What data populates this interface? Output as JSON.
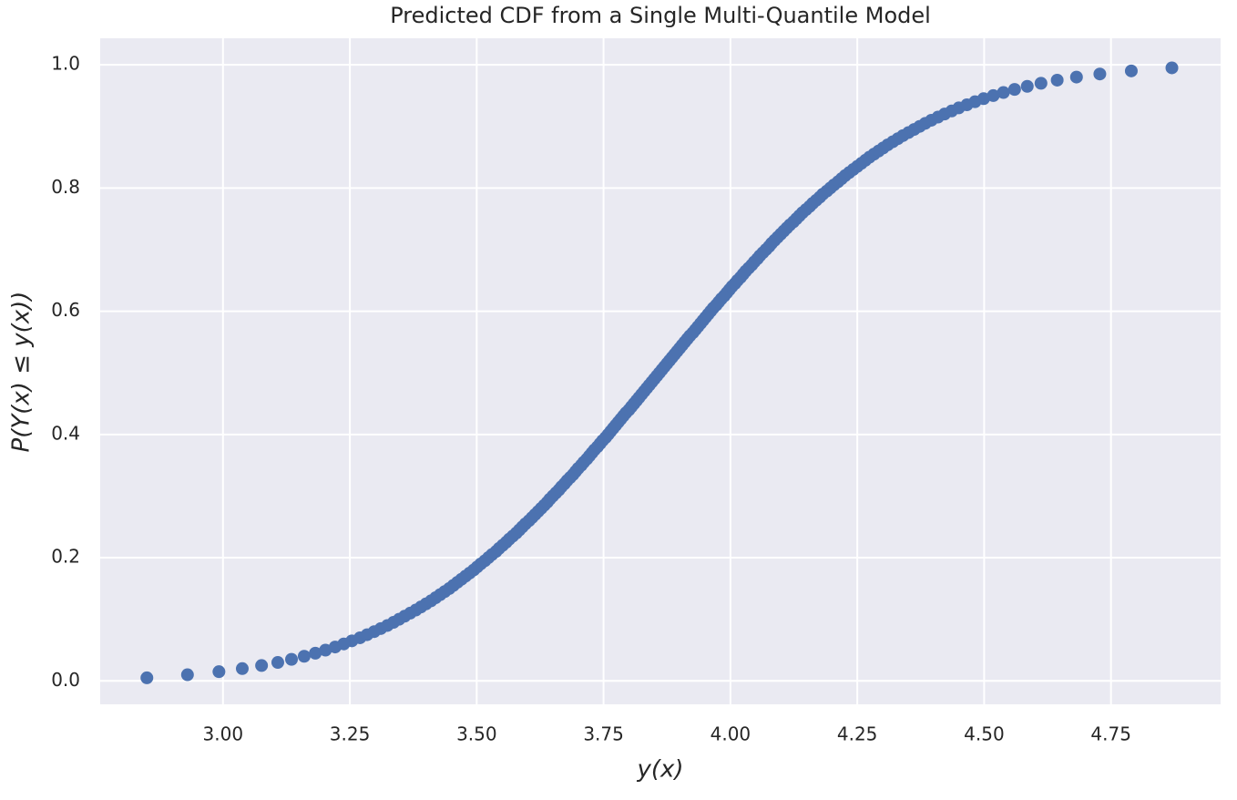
{
  "chart_data": {
    "type": "scatter",
    "title": "Predicted CDF from a Single Multi-Quantile Model",
    "x_label": "y(x)",
    "y_label": "P(Y(x) ≤ y(x))",
    "color": "#4c72b0",
    "grid": true,
    "xlim": [
      2.758,
      4.966
    ],
    "ylim": [
      -0.038,
      1.043
    ],
    "xticks": [
      {
        "value": 3.0,
        "label": "3.00"
      },
      {
        "value": 3.25,
        "label": "3.25"
      },
      {
        "value": 3.5,
        "label": "3.50"
      },
      {
        "value": 3.75,
        "label": "3.75"
      },
      {
        "value": 4.0,
        "label": "4.00"
      },
      {
        "value": 4.25,
        "label": "4.25"
      },
      {
        "value": 4.5,
        "label": "4.50"
      },
      {
        "value": 4.75,
        "label": "4.75"
      }
    ],
    "yticks": [
      {
        "value": 0,
        "label": "0.0"
      },
      0.2,
      0.4,
      0.6,
      0.8,
      {
        "value": 1,
        "label": "1.0"
      }
    ],
    "x": [
      2.85,
      2.93,
      2.992,
      3.038,
      3.076,
      3.108,
      3.135,
      3.16,
      3.182,
      3.202,
      3.221,
      3.238,
      3.254,
      3.27,
      3.284,
      3.298,
      3.311,
      3.324,
      3.336,
      3.347,
      3.358,
      3.369,
      3.38,
      3.39,
      3.4,
      3.41,
      3.419,
      3.428,
      3.437,
      3.446,
      3.454,
      3.462,
      3.47,
      3.478,
      3.486,
      3.494,
      3.501,
      3.508,
      3.516,
      3.523,
      3.53,
      3.538,
      3.544,
      3.551,
      3.558,
      3.564,
      3.571,
      3.578,
      3.584,
      3.59,
      3.596,
      3.603,
      3.609,
      3.615,
      3.621,
      3.627,
      3.633,
      3.639,
      3.644,
      3.65,
      3.656,
      3.662,
      3.667,
      3.673,
      3.678,
      3.684,
      3.69,
      3.695,
      3.7,
      3.706,
      3.711,
      3.717,
      3.722,
      3.727,
      3.732,
      3.738,
      3.743,
      3.748,
      3.754,
      3.759,
      3.764,
      3.769,
      3.774,
      3.779,
      3.784,
      3.789,
      3.794,
      3.8,
      3.805,
      3.81,
      3.815,
      3.82,
      3.825,
      3.83,
      3.835,
      3.84,
      3.845,
      3.85,
      3.855,
      3.86,
      3.865,
      3.87,
      3.875,
      3.88,
      3.885,
      3.89,
      3.895,
      3.9,
      3.905,
      3.91,
      3.915,
      3.92,
      3.926,
      3.931,
      3.936,
      3.941,
      3.946,
      3.951,
      3.956,
      3.961,
      3.966,
      3.972,
      3.977,
      3.982,
      3.988,
      3.993,
      3.998,
      4.003,
      4.009,
      4.014,
      4.02,
      4.025,
      4.03,
      4.036,
      4.042,
      4.047,
      4.053,
      4.058,
      4.064,
      4.07,
      4.076,
      4.081,
      4.087,
      4.093,
      4.099,
      4.105,
      4.111,
      4.117,
      4.124,
      4.13,
      4.136,
      4.142,
      4.149,
      4.156,
      4.162,
      4.169,
      4.176,
      4.182,
      4.19,
      4.197,
      4.204,
      4.212,
      4.219,
      4.226,
      4.234,
      4.242,
      4.25,
      4.258,
      4.266,
      4.274,
      4.283,
      4.292,
      4.301,
      4.31,
      4.32,
      4.33,
      4.34,
      4.351,
      4.362,
      4.373,
      4.384,
      4.396,
      4.409,
      4.422,
      4.436,
      4.45,
      4.466,
      4.482,
      4.499,
      4.518,
      4.538,
      4.56,
      4.585,
      4.612,
      4.644,
      4.682,
      4.728,
      4.79,
      4.87
    ],
    "values": [
      0.005,
      0.01,
      0.015,
      0.02,
      0.025,
      0.03,
      0.035,
      0.04,
      0.045,
      0.05,
      0.055,
      0.06,
      0.065,
      0.07,
      0.075,
      0.08,
      0.085,
      0.09,
      0.095,
      0.1,
      0.105,
      0.11,
      0.115,
      0.12,
      0.125,
      0.13,
      0.135,
      0.14,
      0.145,
      0.15,
      0.155,
      0.16,
      0.165,
      0.17,
      0.175,
      0.18,
      0.185,
      0.19,
      0.195,
      0.2,
      0.205,
      0.21,
      0.215,
      0.22,
      0.225,
      0.23,
      0.235,
      0.24,
      0.245,
      0.25,
      0.255,
      0.26,
      0.265,
      0.27,
      0.275,
      0.28,
      0.285,
      0.29,
      0.295,
      0.3,
      0.305,
      0.31,
      0.315,
      0.32,
      0.325,
      0.33,
      0.335,
      0.34,
      0.345,
      0.35,
      0.355,
      0.36,
      0.365,
      0.37,
      0.375,
      0.38,
      0.385,
      0.39,
      0.395,
      0.4,
      0.405,
      0.41,
      0.415,
      0.42,
      0.425,
      0.43,
      0.435,
      0.44,
      0.445,
      0.45,
      0.455,
      0.46,
      0.465,
      0.47,
      0.475,
      0.48,
      0.485,
      0.49,
      0.495,
      0.5,
      0.505,
      0.51,
      0.515,
      0.52,
      0.525,
      0.53,
      0.535,
      0.54,
      0.545,
      0.55,
      0.555,
      0.56,
      0.565,
      0.57,
      0.575,
      0.58,
      0.585,
      0.59,
      0.595,
      0.6,
      0.605,
      0.61,
      0.615,
      0.62,
      0.625,
      0.63,
      0.635,
      0.64,
      0.645,
      0.65,
      0.655,
      0.66,
      0.665,
      0.67,
      0.675,
      0.68,
      0.685,
      0.69,
      0.695,
      0.7,
      0.705,
      0.71,
      0.715,
      0.72,
      0.725,
      0.73,
      0.735,
      0.74,
      0.745,
      0.75,
      0.755,
      0.76,
      0.765,
      0.77,
      0.775,
      0.78,
      0.785,
      0.79,
      0.795,
      0.8,
      0.805,
      0.81,
      0.815,
      0.82,
      0.825,
      0.83,
      0.835,
      0.84,
      0.845,
      0.85,
      0.855,
      0.86,
      0.865,
      0.87,
      0.875,
      0.88,
      0.885,
      0.89,
      0.895,
      0.9,
      0.905,
      0.91,
      0.915,
      0.92,
      0.925,
      0.93,
      0.935,
      0.94,
      0.945,
      0.95,
      0.955,
      0.96,
      0.965,
      0.97,
      0.975,
      0.98,
      0.985,
      0.99,
      0.995
    ]
  }
}
